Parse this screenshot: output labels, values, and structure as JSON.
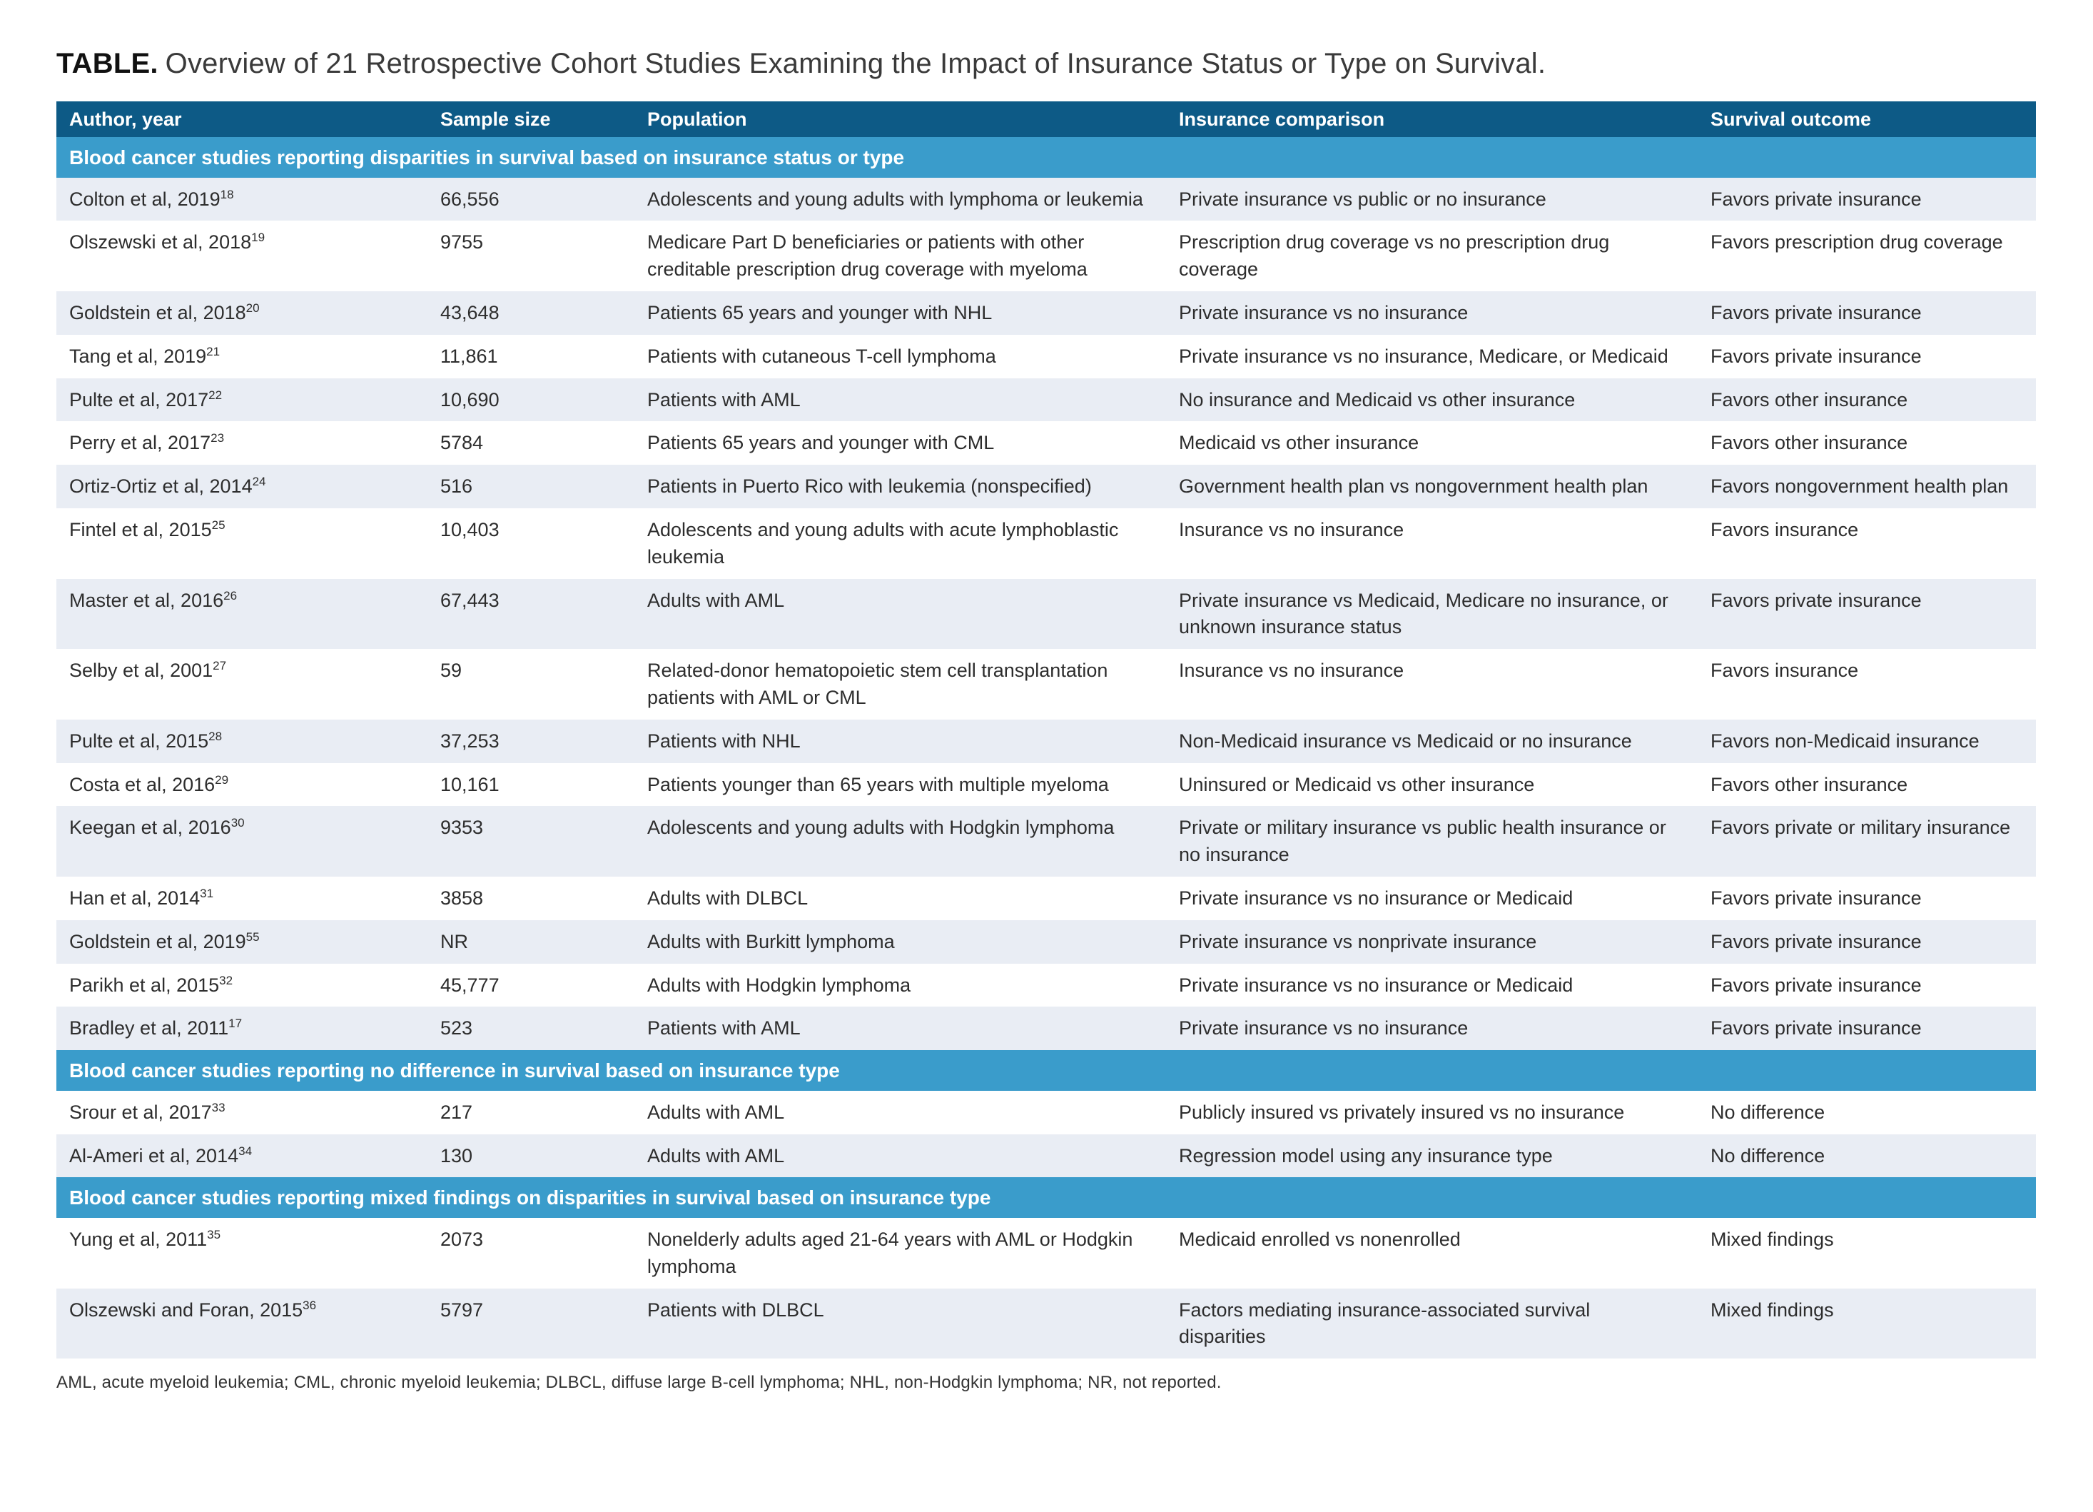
{
  "title": {
    "label": "TABLE.",
    "text": "Overview of 21 Retrospective Cohort Studies Examining the Impact of Insurance Status or Type on Survival."
  },
  "columns": [
    "Author, year",
    "Sample size",
    "Population",
    "Insurance comparison",
    "Survival outcome"
  ],
  "sections": [
    {
      "header": "Blood cancer studies reporting disparities in survival based on insurance status or type",
      "rows": [
        {
          "author": "Colton et al, 2019",
          "ref": "18",
          "sample": "66,556",
          "population": "Adolescents and young adults with lymphoma or leukemia",
          "comparison": "Private insurance vs public or no insurance",
          "outcome": "Favors private insurance"
        },
        {
          "author": "Olszewski et al, 2018",
          "ref": "19",
          "sample": "9755",
          "population": "Medicare Part D beneficiaries or patients with other creditable prescription drug coverage with myeloma",
          "comparison": "Prescription drug coverage vs no prescription drug coverage",
          "outcome": "Favors prescription drug coverage"
        },
        {
          "author": "Goldstein et al, 2018",
          "ref": "20",
          "sample": "43,648",
          "population": "Patients 65 years and younger with NHL",
          "comparison": "Private insurance vs no insurance",
          "outcome": "Favors private insurance"
        },
        {
          "author": "Tang et al, 2019",
          "ref": "21",
          "sample": "11,861",
          "population": "Patients with cutaneous T-cell lymphoma",
          "comparison": "Private insurance vs no insurance, Medicare, or Medicaid",
          "outcome": "Favors private insurance"
        },
        {
          "author": "Pulte et al, 2017",
          "ref": "22",
          "sample": "10,690",
          "population": "Patients with AML",
          "comparison": "No insurance and Medicaid vs other insurance",
          "outcome": "Favors other insurance"
        },
        {
          "author": "Perry et al, 2017",
          "ref": "23",
          "sample": "5784",
          "population": "Patients 65 years and younger with CML",
          "comparison": "Medicaid vs other insurance",
          "outcome": "Favors other insurance"
        },
        {
          "author": "Ortiz-Ortiz et al, 2014",
          "ref": "24",
          "sample": "516",
          "population": "Patients in Puerto Rico with leukemia (nonspecified)",
          "comparison": "Government health plan vs nongovernment health plan",
          "outcome": "Favors nongovernment health plan"
        },
        {
          "author": "Fintel et al, 2015",
          "ref": "25",
          "sample": "10,403",
          "population": "Adolescents and young adults with acute lymphoblastic leukemia",
          "comparison": "Insurance vs no insurance",
          "outcome": "Favors insurance"
        },
        {
          "author": "Master et al, 2016",
          "ref": "26",
          "sample": "67,443",
          "population": "Adults with AML",
          "comparison": "Private insurance vs Medicaid, Medicare no insurance, or unknown insurance status",
          "outcome": "Favors private insurance"
        },
        {
          "author": "Selby et al, 2001",
          "ref": "27",
          "sample": "59",
          "population": "Related-donor hematopoietic stem cell transplantation patients with AML or CML",
          "comparison": "Insurance vs no insurance",
          "outcome": "Favors insurance"
        },
        {
          "author": "Pulte et al, 2015",
          "ref": "28",
          "sample": "37,253",
          "population": "Patients with NHL",
          "comparison": "Non-Medicaid insurance vs Medicaid or no insurance",
          "outcome": "Favors non-Medicaid insurance"
        },
        {
          "author": "Costa et al, 2016",
          "ref": "29",
          "sample": "10,161",
          "population": "Patients younger than 65 years with multiple myeloma",
          "comparison": "Uninsured or Medicaid vs other insurance",
          "outcome": "Favors other insurance"
        },
        {
          "author": "Keegan et al, 2016",
          "ref": "30",
          "sample": "9353",
          "population": "Adolescents and young adults with Hodgkin lymphoma",
          "comparison": "Private or military insurance vs public health insurance or no insurance",
          "outcome": "Favors private or military insurance"
        },
        {
          "author": "Han et al, 2014",
          "ref": "31",
          "sample": "3858",
          "population": "Adults with DLBCL",
          "comparison": "Private insurance vs no insurance or Medicaid",
          "outcome": "Favors private insurance"
        },
        {
          "author": "Goldstein et al, 2019",
          "ref": "55",
          "sample": "NR",
          "population": "Adults with Burkitt lymphoma",
          "comparison": "Private insurance vs nonprivate insurance",
          "outcome": "Favors private insurance"
        },
        {
          "author": "Parikh et al, 2015",
          "ref": "32",
          "sample": "45,777",
          "population": "Adults with Hodgkin lymphoma",
          "comparison": "Private insurance vs no insurance or Medicaid",
          "outcome": "Favors private insurance"
        },
        {
          "author": "Bradley et al, 2011",
          "ref": "17",
          "sample": "523",
          "population": "Patients with AML",
          "comparison": "Private insurance vs no insurance",
          "outcome": "Favors private insurance"
        }
      ]
    },
    {
      "header": "Blood cancer studies reporting no difference in survival based on insurance type",
      "rows": [
        {
          "author": "Srour et al, 2017",
          "ref": "33",
          "sample": "217",
          "population": "Adults with AML",
          "comparison": "Publicly insured vs privately insured vs no insurance",
          "outcome": "No difference"
        },
        {
          "author": "Al-Ameri et al, 2014",
          "ref": "34",
          "sample": "130",
          "population": "Adults with AML",
          "comparison": "Regression model using any insurance type",
          "outcome": "No difference"
        }
      ]
    },
    {
      "header": "Blood cancer studies reporting mixed findings on disparities in survival based on insurance type",
      "rows": [
        {
          "author": "Yung et al, 2011",
          "ref": "35",
          "sample": "2073",
          "population": "Nonelderly adults aged 21-64 years with AML or Hodgkin lymphoma",
          "comparison": "Medicaid enrolled vs nonenrolled",
          "outcome": "Mixed findings"
        },
        {
          "author": "Olszewski and Foran, 2015",
          "ref": "36",
          "sample": "5797",
          "population": "Patients with DLBCL",
          "comparison": "Factors mediating insurance-associated survival disparities",
          "outcome": "Mixed findings"
        }
      ]
    }
  ],
  "footnote": "AML, acute myeloid leukemia; CML, chronic myeloid leukemia; DLBCL, diffuse large B-cell lymphoma; NHL, non-Hodgkin lymphoma; NR, not reported.",
  "colors": {
    "header_bg": "#0d5a86",
    "section_bg": "#3a9ccb",
    "row_alt_bg": "#e9edf4",
    "row_bg": "#ffffff",
    "text": "#2d2d2d"
  }
}
